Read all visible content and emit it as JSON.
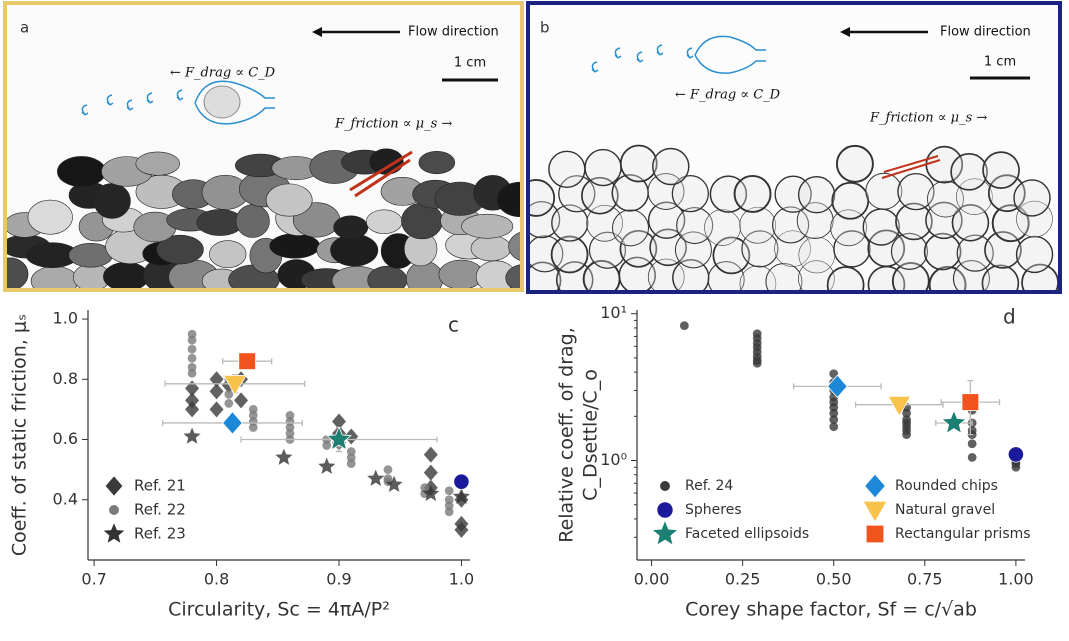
{
  "panels": [
    {
      "label": "a",
      "flow": "Flow direction",
      "scale": "1 cm",
      "drag": "← F_drag ∝ C_D",
      "friction": "F_friction ∝ μ_s →"
    },
    {
      "label": "b",
      "flow": "Flow direction",
      "scale": "1 cm",
      "drag": "← F_drag ∝ C_D",
      "friction": "F_friction ∝ μ_s →"
    }
  ],
  "chart_data": [
    {
      "type": "scatter",
      "panel": "c",
      "xlabel": "Circularity, Sc = 4πA/P²",
      "ylabel": "Coeff. of static friction, μₛ",
      "xlim": [
        0.695,
        1.007
      ],
      "ylim": [
        0.2,
        1.03
      ],
      "xticks": [
        0.7,
        0.8,
        0.9,
        {
          "value": 1,
          "label": "1.0"
        }
      ],
      "yticks": [
        0.4,
        0.6,
        0.8,
        {
          "value": 1,
          "label": "1.0"
        }
      ],
      "legend": "lower left",
      "series": [
        {
          "name": "Ref. 21",
          "color": "#3a3a3a",
          "marker": "diamond",
          "x": [
            0.78,
            0.78,
            0.78,
            0.8,
            0.8,
            0.8,
            0.82,
            0.82,
            0.81,
            0.9,
            0.9,
            0.9,
            0.91,
            0.975,
            0.975,
            0.975,
            1.0,
            1.0,
            1.0
          ],
          "values": [
            0.77,
            0.73,
            0.7,
            0.8,
            0.76,
            0.7,
            0.8,
            0.73,
            0.78,
            0.66,
            0.62,
            0.59,
            0.61,
            0.55,
            0.49,
            0.44,
            0.4,
            0.32,
            0.3
          ]
        },
        {
          "name": "Ref. 22",
          "color": "#7a7a7a",
          "marker": "circle",
          "x": [
            0.78,
            0.78,
            0.78,
            0.78,
            0.78,
            0.78,
            0.81,
            0.81,
            0.81,
            0.83,
            0.83,
            0.83,
            0.83,
            0.86,
            0.86,
            0.86,
            0.86,
            0.86,
            0.89,
            0.89,
            0.91,
            0.91,
            0.91,
            0.94,
            0.94,
            0.94,
            0.97,
            0.97,
            0.99,
            0.99,
            0.99,
            0.99
          ],
          "values": [
            0.95,
            0.93,
            0.9,
            0.87,
            0.84,
            0.82,
            0.8,
            0.75,
            0.72,
            0.7,
            0.68,
            0.66,
            0.64,
            0.68,
            0.66,
            0.64,
            0.62,
            0.6,
            0.6,
            0.58,
            0.56,
            0.54,
            0.52,
            0.5,
            0.47,
            0.46,
            0.44,
            0.42,
            0.43,
            0.4,
            0.38,
            0.36
          ]
        },
        {
          "name": "Ref. 23",
          "color": "#333333",
          "marker": "star",
          "x": [
            0.78,
            0.855,
            0.89,
            0.93,
            0.945,
            0.975,
            1.0
          ],
          "values": [
            0.61,
            0.54,
            0.51,
            0.47,
            0.45,
            0.42,
            0.41
          ]
        },
        {
          "color": "#1e88d8",
          "marker": "diamond",
          "x": [
            0.813
          ],
          "values": [
            0.655
          ],
          "xerr": [
            0.057
          ]
        },
        {
          "color": "#f7c34a",
          "marker": "triangle",
          "x": [
            0.815
          ],
          "values": [
            0.785
          ],
          "xerr": [
            0.057
          ],
          "yerr": [
            0.03
          ]
        },
        {
          "color": "#f0531c",
          "marker": "square",
          "x": [
            0.825
          ],
          "values": [
            0.86
          ],
          "xerr": [
            0.02
          ]
        },
        {
          "color": "#1b7f72",
          "marker": "star",
          "x": [
            0.9
          ],
          "values": [
            0.6
          ],
          "xerr": [
            0.08
          ],
          "yerr": [
            0.04
          ]
        },
        {
          "color": "#1a1a9a",
          "marker": "circle",
          "x": [
            1.0
          ],
          "values": [
            0.46
          ],
          "yerr": [
            0.02
          ]
        }
      ]
    },
    {
      "type": "scatter",
      "panel": "d",
      "xlabel": "Corey shape factor, Sf = c/√ab",
      "ylabel": [
        "Relative coeff. of drag,",
        "C_Dsettle/C_o"
      ],
      "xlim": [
        -0.04,
        1.025
      ],
      "ylim": [
        0.21,
        10.6
      ],
      "yscale": "log",
      "xticks": [
        {
          "value": 0,
          "label": "0.00"
        },
        0.25,
        {
          "value": 0.5,
          "label": "0.50"
        },
        0.75,
        {
          "value": 1,
          "label": "1.00"
        }
      ],
      "yticks": [
        {
          "value": 1,
          "label": "10⁰"
        },
        {
          "value": 10,
          "label": "10¹"
        }
      ],
      "legend": "lower center",
      "legend_columns": 2,
      "series": [
        {
          "name": "Ref. 24",
          "color": "#3a3a3a",
          "marker": "circle",
          "x": [
            0.09,
            0.29,
            0.29,
            0.29,
            0.29,
            0.29,
            0.29,
            0.29,
            0.29,
            0.5,
            0.5,
            0.5,
            0.5,
            0.5,
            0.5,
            0.5,
            0.5,
            0.5,
            0.7,
            0.7,
            0.7,
            0.7,
            0.7,
            0.7,
            0.7,
            0.88,
            0.88,
            0.88,
            0.88,
            0.88,
            0.88,
            1.0,
            1.0,
            1.0,
            1.0
          ],
          "values": [
            8.3,
            7.3,
            6.8,
            6.3,
            5.9,
            5.5,
            5.1,
            4.8,
            4.6,
            3.9,
            3.4,
            3.0,
            2.7,
            2.5,
            2.3,
            2.1,
            1.9,
            1.7,
            2.3,
            2.1,
            1.9,
            1.8,
            1.7,
            1.6,
            1.5,
            2.2,
            1.8,
            1.6,
            1.5,
            1.3,
            1.05,
            1.0,
            0.95,
            0.9,
            0.98
          ]
        },
        {
          "name": "Spheres",
          "color": "#1a1a9a",
          "marker": "circle",
          "x": [
            1.0
          ],
          "values": [
            1.1
          ]
        },
        {
          "name": "Faceted ellipsoids",
          "color": "#1b7f72",
          "marker": "star",
          "x": [
            0.83
          ],
          "values": [
            1.8
          ],
          "xerr": [
            0.05
          ]
        },
        {
          "name": "Rounded chips",
          "color": "#1e88d8",
          "marker": "diamond",
          "x": [
            0.51
          ],
          "values": [
            3.2
          ],
          "xerr": [
            0.12
          ]
        },
        {
          "name": "Natural gravel",
          "color": "#f7c34a",
          "marker": "triangle",
          "x": [
            0.68
          ],
          "values": [
            2.4
          ],
          "xerr": [
            0.12
          ]
        },
        {
          "name": "Rectangular prisms",
          "color": "#f0531c",
          "marker": "square",
          "x": [
            0.875
          ],
          "values": [
            2.5
          ],
          "xerr": [
            0.08
          ],
          "yerr": [
            1.0
          ]
        }
      ]
    }
  ]
}
